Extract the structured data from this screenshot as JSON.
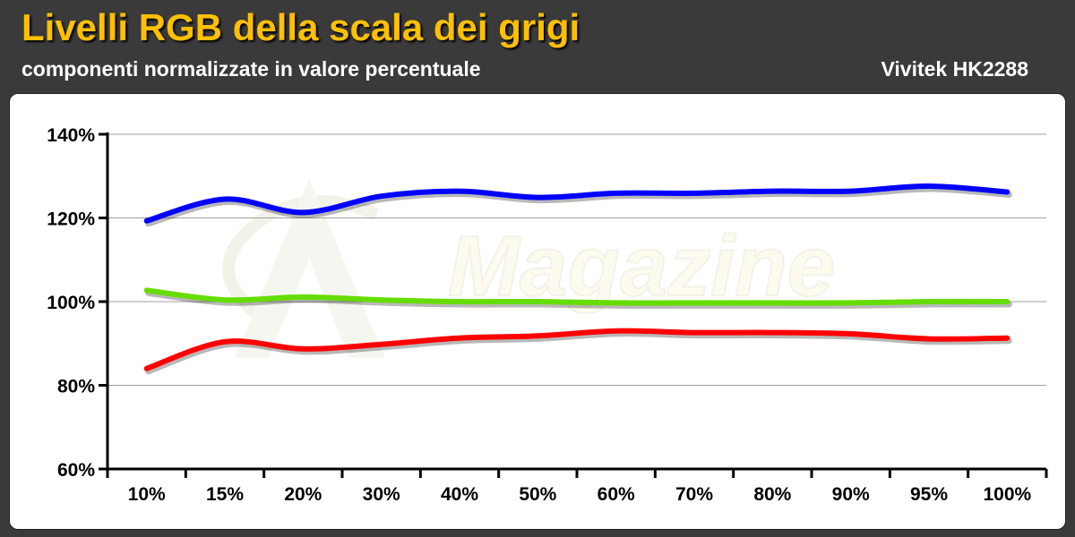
{
  "header": {
    "title": "Livelli RGB della scala dei grigi",
    "subtitle": "componenti normalizzate in valore percentuale",
    "brand": "Vivitek HK2288"
  },
  "chart_data": {
    "type": "line",
    "title": "Livelli RGB della scala dei grigi",
    "subtitle": "componenti normalizzate in valore percentuale",
    "categories": [
      "10%",
      "15%",
      "20%",
      "30%",
      "40%",
      "50%",
      "60%",
      "70%",
      "80%",
      "90%",
      "95%",
      "100%"
    ],
    "ylim": [
      60,
      140
    ],
    "yticks": [
      60,
      80,
      100,
      120,
      140
    ],
    "ytick_labels": [
      "60%",
      "80%",
      "100%",
      "120%",
      "140%"
    ],
    "grid": true,
    "legend": "none",
    "series": [
      {
        "color": "#0000ff",
        "values": [
          119.3,
          124.5,
          121.3,
          125.2,
          126.4,
          124.9,
          125.9,
          125.9,
          126.4,
          126.4,
          127.6,
          126.2
        ]
      },
      {
        "color": "#66dd00",
        "values": [
          102.7,
          100.4,
          101.1,
          100.4,
          100.0,
          100.0,
          99.7,
          99.7,
          99.7,
          99.7,
          100.0,
          100.0
        ]
      },
      {
        "color": "#ff0000",
        "values": [
          84.0,
          90.4,
          88.7,
          89.8,
          91.3,
          91.8,
          93.0,
          92.6,
          92.6,
          92.3,
          91.1,
          91.3
        ]
      }
    ],
    "watermark": "Magazine"
  }
}
